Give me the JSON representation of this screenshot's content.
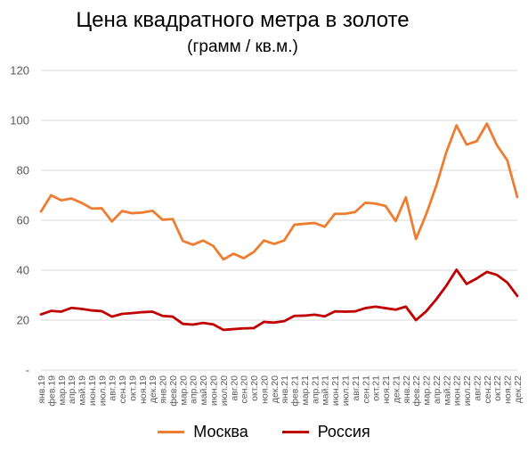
{
  "chart_data": {
    "type": "line",
    "title": "Цена квадратного метра в золоте",
    "subtitle": "(грамм / кв.м.)",
    "xlabel": "",
    "ylabel": "",
    "ylim": [
      0,
      120
    ],
    "yticks": [
      "-",
      "20",
      "40",
      "60",
      "80",
      "100",
      "120"
    ],
    "grid": "horizontal",
    "legend_position": "bottom",
    "categories": [
      "янв.19",
      "фев.19",
      "мар.19",
      "апр.19",
      "май.19",
      "июн.19",
      "июл.19",
      "авг.19",
      "сен.19",
      "окт.19",
      "ноя.19",
      "дек.19",
      "янв.20",
      "фев.20",
      "мар.20",
      "апр.20",
      "май.20",
      "июн.20",
      "июл.20",
      "авг.20",
      "сен.20",
      "окт.20",
      "ноя.20",
      "дек.20",
      "янв.21",
      "фев.21",
      "мар.21",
      "апр.21",
      "май.21",
      "июн.21",
      "июл.21",
      "авг.21",
      "сен.21",
      "окт.21",
      "ноя.21",
      "дек.21",
      "янв.22",
      "фев.22",
      "мар.22",
      "апр.22",
      "май.22",
      "июн.22",
      "июл.22",
      "авг.22",
      "сен.22",
      "окт.22",
      "ноя.22",
      "дек.22"
    ],
    "series": [
      {
        "name": "Москва",
        "color": "#ED7D31",
        "values": [
          63.5,
          70,
          68,
          68.7,
          67,
          64.7,
          64.8,
          59.5,
          63.7,
          62.8,
          63.1,
          63.8,
          60.2,
          60.5,
          51.7,
          50.2,
          51.9,
          49.7,
          44.3,
          46.6,
          44.8,
          47.3,
          51.9,
          50.5,
          51.9,
          58.2,
          58.6,
          58.9,
          57.4,
          62.6,
          62.6,
          63.3,
          67,
          66.7,
          65.7,
          59.7,
          69.2,
          52.5,
          62.3,
          73.8,
          87.3,
          98,
          90.3,
          91.7,
          98.7,
          90,
          84.1,
          69.3
        ]
      },
      {
        "name": "Россия",
        "color": "#C00000",
        "values": [
          22.3,
          23.7,
          23.4,
          24.9,
          24.5,
          23.9,
          23.6,
          21.4,
          22.5,
          22.8,
          23.2,
          23.4,
          21.7,
          21.4,
          18.5,
          18.2,
          18.9,
          18.3,
          16.1,
          16.4,
          16.7,
          16.8,
          19.3,
          19,
          19.6,
          21.7,
          21.8,
          22.2,
          21.5,
          23.5,
          23.4,
          23.5,
          24.8,
          25.4,
          24.8,
          24.2,
          25.4,
          20,
          23.5,
          28.3,
          33.8,
          40.2,
          34.5,
          36.7,
          39.3,
          38.1,
          35.1,
          29.7
        ]
      }
    ]
  }
}
